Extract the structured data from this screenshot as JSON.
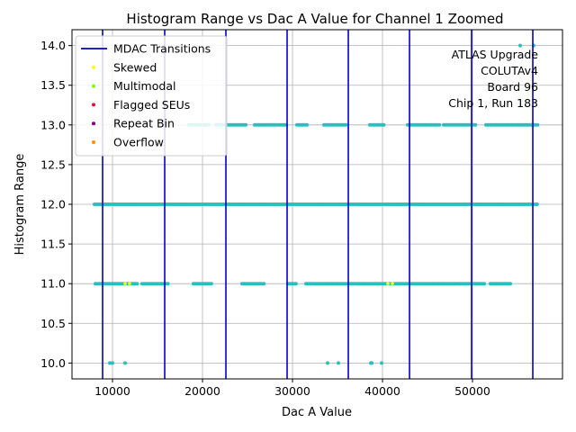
{
  "chart_data": {
    "type": "scatter",
    "title": "Histogram Range vs Dac A Value for Channel 1 Zoomed",
    "xlabel": "Dac A Value",
    "ylabel": "Histogram Range",
    "xlim": [
      5500,
      60000
    ],
    "ylim": [
      9.8,
      14.2
    ],
    "xticks": [
      10000,
      20000,
      30000,
      40000,
      50000
    ],
    "xtick_labels": [
      "10000",
      "20000",
      "30000",
      "40000",
      "50000"
    ],
    "yticks": [
      10.0,
      10.5,
      11.0,
      11.5,
      12.0,
      12.5,
      13.0,
      13.5,
      14.0
    ],
    "ytick_labels": [
      "10.0",
      "10.5",
      "11.0",
      "11.5",
      "12.0",
      "12.5",
      "13.0",
      "13.5",
      "14.0"
    ],
    "grid": true,
    "legend_position": "top-left",
    "colors": {
      "points": "#2abfbf",
      "transitions": "#0000cc",
      "skewed": "#ffff00",
      "multimodal": "#7fff00",
      "flagged": "#dc143c",
      "repeat": "#800080",
      "overflow": "#ff8c00"
    },
    "transitions": {
      "name": "MDAC Transitions",
      "x": [
        8900,
        15800,
        22600,
        29400,
        36200,
        43000,
        49900,
        56700
      ]
    },
    "series": [
      {
        "y": 14.0,
        "x": [
          55300,
          56800
        ]
      },
      {
        "y": 13.0,
        "ranges": [
          [
            18500,
            20800
          ],
          [
            21500,
            24800
          ],
          [
            25800,
            29500
          ],
          [
            30500,
            31800
          ],
          [
            33500,
            36000
          ],
          [
            38600,
            40200
          ],
          [
            42800,
            46500
          ],
          [
            46800,
            50500
          ],
          [
            51500,
            57300
          ]
        ]
      },
      {
        "y": 12.0,
        "ranges": [
          [
            8000,
            14500
          ],
          [
            14500,
            57300
          ]
        ]
      },
      {
        "y": 11.0,
        "ranges": [
          [
            8100,
            12800
          ],
          [
            13300,
            16300
          ],
          [
            19000,
            21000
          ],
          [
            24400,
            27000
          ],
          [
            29500,
            30400
          ],
          [
            31500,
            51300
          ],
          [
            52000,
            54200
          ]
        ]
      },
      {
        "y": 10.0,
        "x": [
          9700,
          9900,
          10000,
          11400,
          33900,
          35100,
          38700,
          38800,
          39900
        ]
      }
    ],
    "highlights": [
      {
        "category": "skewed",
        "points": [
          [
            11400,
            11.0
          ],
          [
            11900,
            11.0
          ],
          [
            40600,
            11.0
          ],
          [
            41100,
            11.0
          ]
        ]
      }
    ],
    "legend": [
      {
        "key": "transitions",
        "label": "MDAC Transitions",
        "kind": "line"
      },
      {
        "key": "skewed",
        "label": "Skewed",
        "kind": "dot"
      },
      {
        "key": "multimodal",
        "label": "Multimodal",
        "kind": "dot"
      },
      {
        "key": "flagged",
        "label": "Flagged SEUs",
        "kind": "dot"
      },
      {
        "key": "repeat",
        "label": "Repeat Bin",
        "kind": "dot"
      },
      {
        "key": "overflow",
        "label": "Overflow",
        "kind": "dot"
      }
    ],
    "annotation": [
      "ATLAS Upgrade",
      "COLUTAv4",
      "Board 96",
      "Chip 1, Run 183"
    ]
  }
}
